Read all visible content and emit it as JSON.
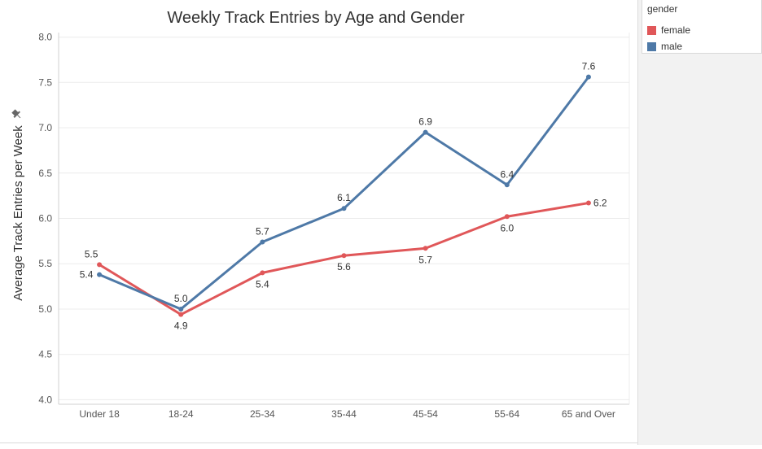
{
  "chart_data": {
    "type": "line",
    "title": "Weekly Track Entries by Age and Gender",
    "ylabel": "Average Track Entries per Week",
    "xlabel": "",
    "categories": [
      "Under 18",
      "18-24",
      "25-34",
      "35-44",
      "45-54",
      "55-64",
      "65 and Over"
    ],
    "ylim": [
      3.95,
      8.05
    ],
    "yticks": [
      4.0,
      4.5,
      5.0,
      5.5,
      6.0,
      6.5,
      7.0,
      7.5,
      8.0
    ],
    "ytick_labels": [
      "4.0",
      "4.5",
      "5.0",
      "5.5",
      "6.0",
      "6.5",
      "7.0",
      "7.5",
      "8.0"
    ],
    "grid": true,
    "legend_position": "top-right",
    "series": [
      {
        "name": "female",
        "color": "#e05759",
        "values": [
          5.49,
          4.94,
          5.4,
          5.59,
          5.67,
          6.02,
          6.17
        ],
        "labels": [
          "5.5",
          "4.9",
          "5.4",
          "5.6",
          "5.7",
          "6.0",
          "6.2"
        ]
      },
      {
        "name": "male",
        "color": "#4e79a7",
        "values": [
          5.38,
          5.0,
          5.74,
          6.11,
          6.95,
          6.37,
          7.56
        ],
        "labels": [
          "5.4",
          "5.0",
          "5.7",
          "6.1",
          "6.9",
          "6.4",
          "7.6"
        ]
      }
    ]
  },
  "legend": {
    "title": "gender",
    "items": [
      {
        "label": "female",
        "color": "#e05759"
      },
      {
        "label": "male",
        "color": "#4e79a7"
      }
    ]
  },
  "icons": {
    "axis_pin": "pin-icon"
  }
}
